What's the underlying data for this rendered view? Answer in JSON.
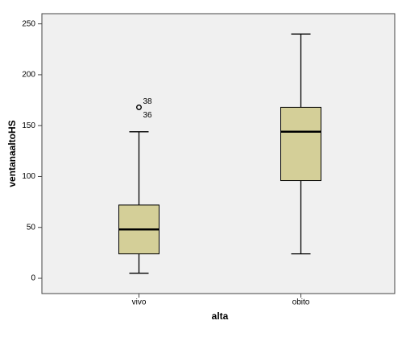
{
  "chart_data": {
    "type": "box",
    "x_label": "alta",
    "y_label": "ventanaaltoHS",
    "categories": [
      "vivo",
      "obito"
    ],
    "boxes": [
      {
        "min": 5,
        "q1": 24,
        "median": 48,
        "q3": 72,
        "max": 144,
        "outliers": [
          {
            "value": 168,
            "label": "38"
          },
          {
            "value": 168,
            "label": "36"
          }
        ]
      },
      {
        "min": 24,
        "q1": 96,
        "median": 144,
        "q3": 168,
        "max": 240,
        "outliers": []
      }
    ],
    "color": "#d4cf98",
    "ylim": [
      -15,
      260
    ],
    "yticks": [
      0,
      50,
      100,
      150,
      200,
      250
    ]
  }
}
